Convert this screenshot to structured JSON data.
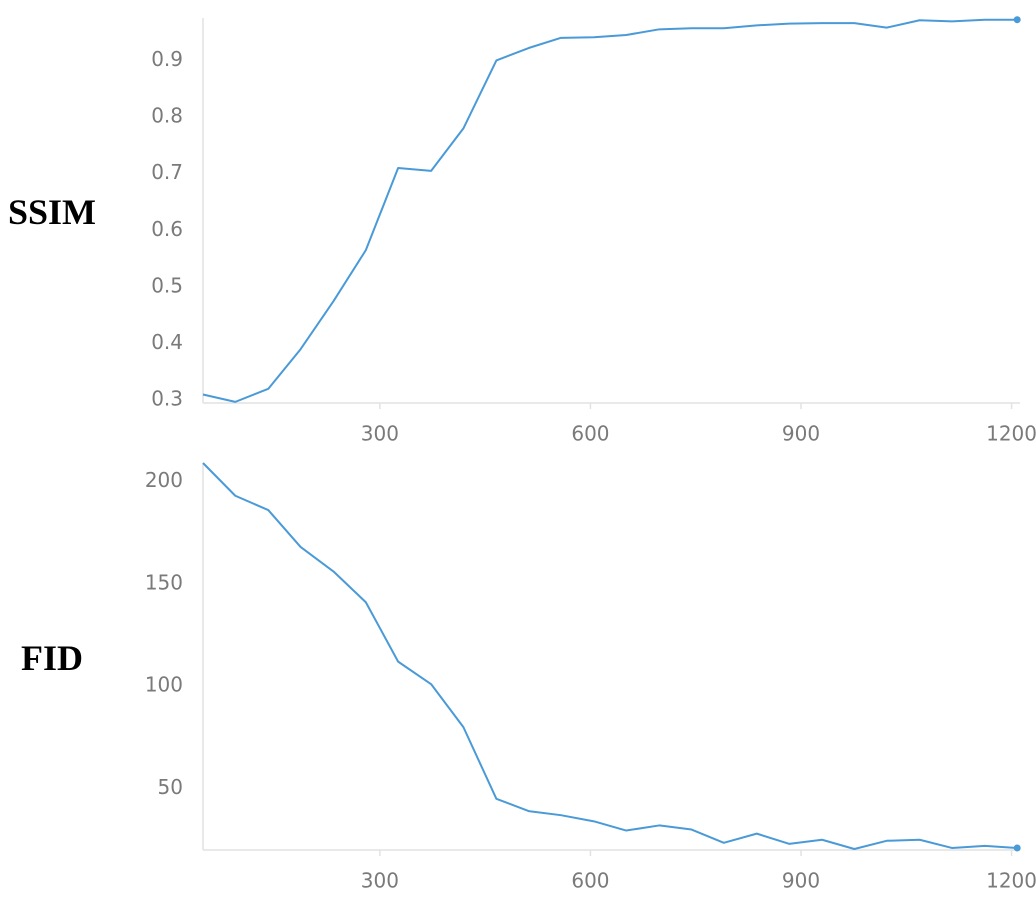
{
  "chart_data": [
    {
      "type": "line",
      "ylabel": "SSIM",
      "x": [
        48,
        94,
        141,
        187,
        234,
        280,
        326,
        373,
        419,
        466,
        512,
        558,
        605,
        651,
        698,
        744,
        790,
        837,
        883,
        930,
        976,
        1022,
        1069,
        1115,
        1162,
        1208
      ],
      "series": [
        {
          "color": "#4a9ad8",
          "values": [
            0.31,
            0.297,
            0.32,
            0.39,
            0.475,
            0.565,
            0.71,
            0.705,
            0.78,
            0.9,
            0.922,
            0.94,
            0.941,
            0.945,
            0.955,
            0.957,
            0.957,
            0.962,
            0.965,
            0.966,
            0.966,
            0.958,
            0.971,
            0.969,
            0.972,
            0.972
          ]
        }
      ],
      "xlim": [
        48,
        1212
      ],
      "xticks": [
        300,
        600,
        900,
        1200
      ],
      "ylim": [
        0.295,
        0.975
      ],
      "yticks": [
        0.3,
        0.4,
        0.5,
        0.6,
        0.7,
        0.8,
        0.9
      ]
    },
    {
      "type": "line",
      "ylabel": "FID",
      "x": [
        48,
        94,
        141,
        187,
        234,
        280,
        326,
        373,
        419,
        466,
        512,
        558,
        605,
        651,
        698,
        744,
        790,
        837,
        883,
        930,
        976,
        1022,
        1069,
        1115,
        1162,
        1208
      ],
      "series": [
        {
          "color": "#4a9ad8",
          "values": [
            209,
            193,
            186,
            168,
            156,
            141,
            112,
            101,
            80,
            45,
            39,
            37,
            34,
            29.5,
            32,
            30,
            23.5,
            28,
            23,
            25,
            20.5,
            24.5,
            25,
            21,
            22,
            21
          ]
        }
      ],
      "xlim": [
        48,
        1212
      ],
      "xticks": [
        300,
        600,
        900,
        1200
      ],
      "ylim": [
        20,
        209
      ],
      "yticks": [
        50,
        100,
        150,
        200
      ]
    }
  ]
}
